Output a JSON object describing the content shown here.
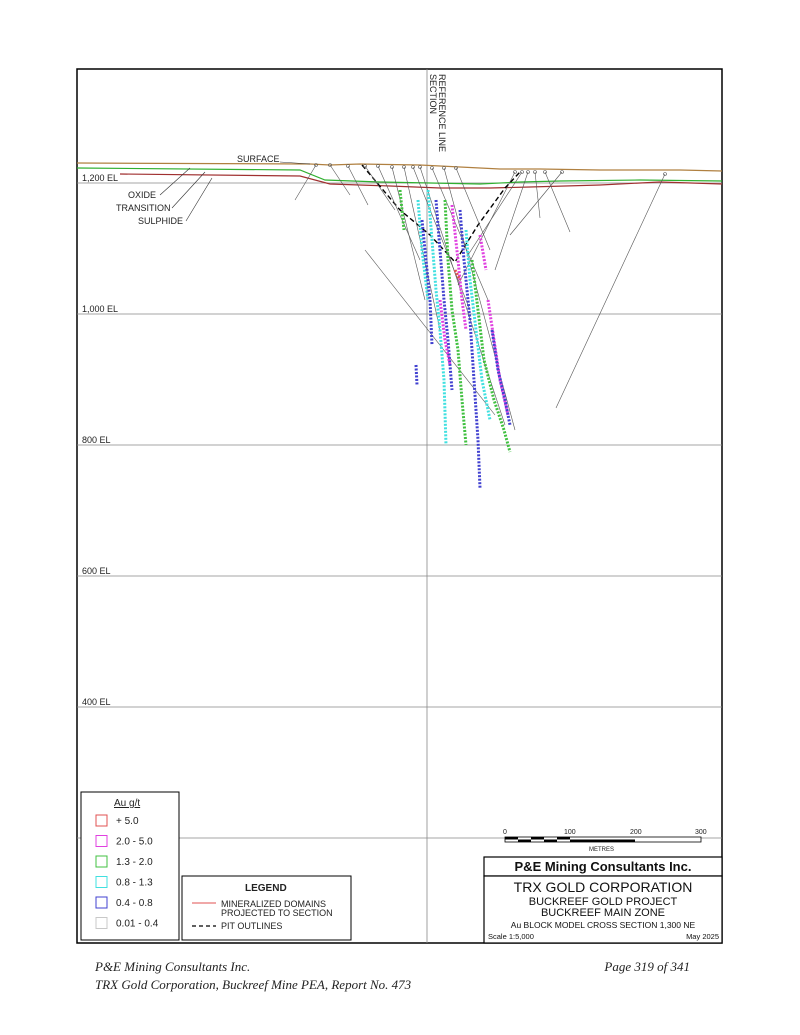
{
  "section_reference_label": "SECTION\nREFERENCE LINE",
  "surface_labels": {
    "surface": "SURFACE",
    "oxide": "OXIDE",
    "transition": "TRANSITION",
    "sulphide": "SULPHIDE"
  },
  "elevation_labels": [
    "1,200 EL",
    "1,000 EL",
    "800 EL",
    "600 EL",
    "400 EL"
  ],
  "au_legend": {
    "title": "Au g/t",
    "classes": [
      {
        "label": "+ 5.0",
        "color": "#e05050"
      },
      {
        "label": "2.0 - 5.0",
        "color": "#e040e0"
      },
      {
        "label": "1.3 - 2.0",
        "color": "#40c040"
      },
      {
        "label": "0.8 - 1.3",
        "color": "#40e0e0"
      },
      {
        "label": "0.4 - 0.8",
        "color": "#4040d0"
      },
      {
        "label": "0.01 - 0.4",
        "color": "#c8c8c8"
      }
    ]
  },
  "legend": {
    "title": "LEGEND",
    "domains_line1": "MINERALIZED DOMAINS",
    "domains_line2": "PROJECTED TO SECTION",
    "pit": "PIT OUTLINES"
  },
  "scale_bar": {
    "ticks": [
      "0",
      "100",
      "200",
      "300"
    ],
    "unit": "METRES"
  },
  "title_block": {
    "consultant": "P&E Mining Consultants Inc.",
    "client": "TRX GOLD CORPORATION",
    "project": "BUCKREEF GOLD PROJECT",
    "zone": "BUCKREEF MAIN ZONE",
    "drawing": "Au BLOCK MODEL CROSS SECTION 1,300 NE",
    "scale": "Scale 1:5,000",
    "date": "May 2025"
  },
  "footer": {
    "left_line1": "P&E Mining Consultants Inc.",
    "left_line2": "TRX Gold Corporation, Buckreef Mine PEA, Report No. 473",
    "right": "Page 319 of 341"
  }
}
